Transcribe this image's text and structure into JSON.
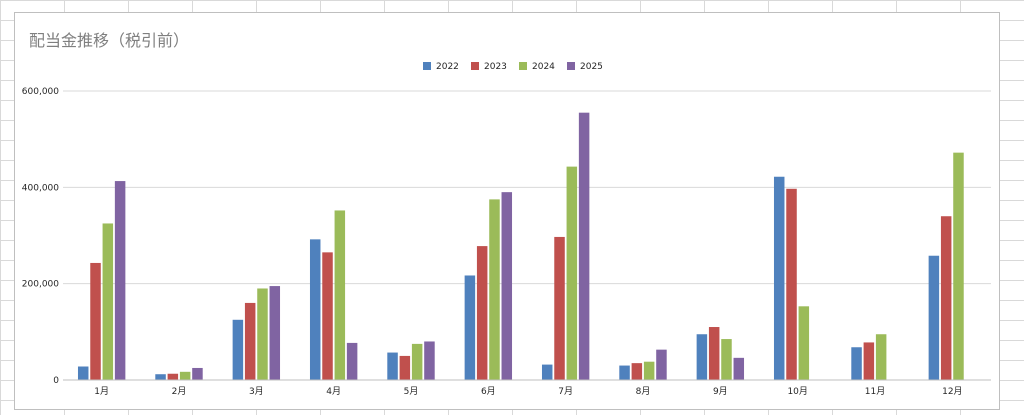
{
  "chart_data": {
    "type": "bar",
    "title": "配当金推移（税引前）",
    "xlabel": "",
    "ylabel": "",
    "categories": [
      "1月",
      "2月",
      "3月",
      "4月",
      "5月",
      "6月",
      "7月",
      "8月",
      "9月",
      "10月",
      "11月",
      "12月"
    ],
    "series": [
      {
        "name": "2022",
        "color": "#4f81bd",
        "values": [
          28000,
          12000,
          125000,
          292000,
          57000,
          217000,
          32000,
          30000,
          95000,
          422000,
          68000,
          258000
        ]
      },
      {
        "name": "2023",
        "color": "#c0504d",
        "values": [
          243000,
          13000,
          160000,
          265000,
          50000,
          278000,
          297000,
          35000,
          110000,
          397000,
          78000,
          340000
        ]
      },
      {
        "name": "2024",
        "color": "#9bbb59",
        "values": [
          325000,
          17000,
          190000,
          352000,
          75000,
          375000,
          443000,
          38000,
          85000,
          153000,
          95000,
          472000
        ]
      },
      {
        "name": "2025",
        "color": "#8064a2",
        "values": [
          413000,
          25000,
          195000,
          77000,
          80000,
          390000,
          555000,
          63000,
          46000,
          0,
          0,
          0
        ]
      }
    ],
    "ylim": [
      0,
      600000
    ],
    "yticks": [
      0,
      200000,
      400000,
      600000
    ],
    "ytick_labels": [
      "0",
      "200,000",
      "400,000",
      "600,000"
    ],
    "grid": true,
    "legend_position": "top"
  }
}
